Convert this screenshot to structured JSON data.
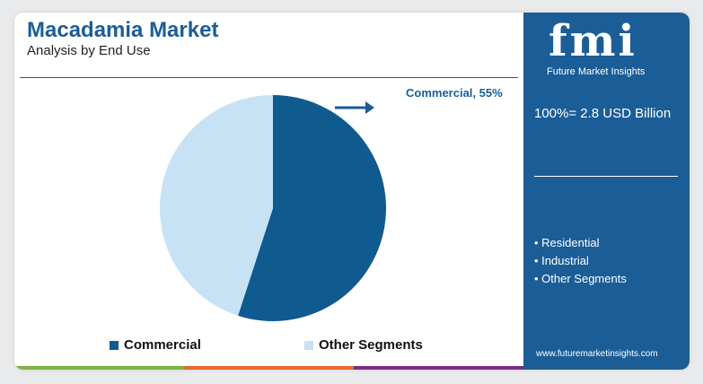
{
  "header": {
    "title": "Macadamia Market",
    "subtitle": "Analysis by End Use"
  },
  "logo": {
    "mark": "fmi",
    "tagline": "Future Market Insights"
  },
  "panel": {
    "total": "100%= 2.8 USD Billion",
    "segments": [
      "Residential",
      "Industrial",
      "Other Segments"
    ],
    "website": "www.futuremarketinsights.com"
  },
  "callout": "Commercial, 55%",
  "colors": {
    "primary": "#1b5d97",
    "commercial": "#0f5a8e",
    "other": "#c7e2f4",
    "bar": [
      "#7bb342",
      "#e6692e",
      "#7b2a8c"
    ]
  },
  "chart_data": {
    "type": "pie",
    "title": "Macadamia Market",
    "subtitle": "Analysis by End Use",
    "labels": [
      "Commercial",
      "Other Segments"
    ],
    "values": [
      55,
      45
    ],
    "unit": "%",
    "total": "2.8 USD Billion",
    "legend_position": "bottom"
  }
}
